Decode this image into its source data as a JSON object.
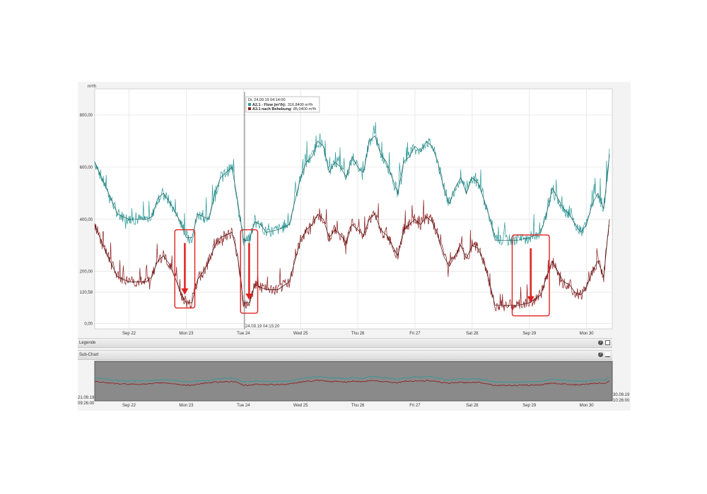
{
  "colors": {
    "flow": "#2a9a98",
    "nach": "#8b1a1a",
    "flow_avg": "#1a5a58",
    "nach_avg": "#3a0a0a",
    "highlight": "#e02020",
    "grid": "#dddddd"
  },
  "legend_bar": {
    "title": "Legende"
  },
  "subchart_bar": {
    "title": "Sub-Chart"
  },
  "subchart": {
    "start_label": [
      "21.09.19",
      "09:26:00"
    ],
    "end_label": [
      "30.09.19",
      "10:26:00"
    ]
  },
  "tooltip": {
    "header": "Di, 24.09.19 04:14:00",
    "rows": [
      {
        "name": "A2.1 - Flow (m³/h):",
        "value": "316,8400 m³/h"
      },
      {
        "name": "A3.1 nach Behebung:",
        "value": "85,0400 m³/h"
      }
    ],
    "crosshair_label": "24.09.19 04:15:20"
  },
  "chart_data": {
    "type": "line",
    "ylabel": "m³/h",
    "ylim": [
      -20,
      900
    ],
    "yticks": [
      {
        "value": 0,
        "label": "0,00"
      },
      {
        "value": 120.58,
        "label": "120,58"
      },
      {
        "value": 200,
        "label": "200,00"
      },
      {
        "value": 400,
        "label": "400,00"
      },
      {
        "value": 600,
        "label": "600,00"
      },
      {
        "value": 800,
        "label": "800,00"
      }
    ],
    "xlim": [
      0,
      9.05
    ],
    "xticks": [
      {
        "value": 0.6,
        "label": "Sep 22"
      },
      {
        "value": 1.6,
        "label": "Mon 23"
      },
      {
        "value": 2.6,
        "label": "Tue 24"
      },
      {
        "value": 3.6,
        "label": "Wed 25"
      },
      {
        "value": 4.6,
        "label": "Thu 26"
      },
      {
        "value": 5.6,
        "label": "Fri 27"
      },
      {
        "value": 6.6,
        "label": "Sat 28"
      },
      {
        "value": 7.6,
        "label": "Sep 29"
      },
      {
        "value": 8.6,
        "label": "Mon 30"
      }
    ],
    "series": [
      {
        "name": "A2.1 - Flow (m³/h)",
        "x": [
          0,
          0.2,
          0.4,
          0.6,
          0.8,
          0.9,
          1.0,
          1.1,
          1.2,
          1.3,
          1.4,
          1.5,
          1.6,
          1.7,
          1.8,
          1.9,
          2.0,
          2.1,
          2.2,
          2.3,
          2.4,
          2.5,
          2.6,
          2.7,
          2.8,
          2.9,
          3.0,
          3.2,
          3.4,
          3.6,
          3.7,
          3.8,
          3.9,
          4.0,
          4.1,
          4.2,
          4.3,
          4.4,
          4.5,
          4.6,
          4.7,
          4.8,
          4.9,
          5.0,
          5.1,
          5.2,
          5.3,
          5.4,
          5.5,
          5.6,
          5.7,
          5.8,
          5.9,
          6.0,
          6.1,
          6.2,
          6.3,
          6.4,
          6.5,
          6.6,
          6.7,
          6.8,
          6.9,
          7.0,
          7.2,
          7.4,
          7.6,
          7.8,
          7.9,
          8.0,
          8.1,
          8.2,
          8.3,
          8.4,
          8.5,
          8.6,
          8.7,
          8.8,
          8.9,
          9.0
        ],
        "values": [
          620,
          520,
          420,
          400,
          400,
          400,
          410,
          480,
          500,
          470,
          430,
          390,
          330,
          330,
          420,
          410,
          400,
          500,
          560,
          580,
          600,
          470,
          320,
          320,
          390,
          380,
          350,
          360,
          380,
          560,
          620,
          640,
          700,
          680,
          580,
          620,
          600,
          560,
          640,
          600,
          580,
          700,
          720,
          650,
          620,
          560,
          500,
          620,
          640,
          680,
          660,
          700,
          680,
          620,
          520,
          460,
          520,
          560,
          500,
          560,
          540,
          480,
          410,
          320,
          320,
          320,
          330,
          350,
          420,
          520,
          480,
          440,
          420,
          380,
          350,
          380,
          460,
          500,
          440,
          650
        ]
      },
      {
        "name": "A3.1 nach Behebung",
        "x": [
          0,
          0.2,
          0.4,
          0.6,
          0.8,
          0.9,
          1.0,
          1.1,
          1.2,
          1.3,
          1.4,
          1.5,
          1.6,
          1.7,
          1.8,
          1.9,
          2.0,
          2.1,
          2.2,
          2.3,
          2.4,
          2.5,
          2.6,
          2.7,
          2.8,
          2.9,
          3.0,
          3.2,
          3.4,
          3.6,
          3.7,
          3.8,
          3.9,
          4.0,
          4.1,
          4.2,
          4.3,
          4.4,
          4.5,
          4.6,
          4.7,
          4.8,
          4.9,
          5.0,
          5.1,
          5.2,
          5.3,
          5.4,
          5.5,
          5.6,
          5.7,
          5.8,
          5.9,
          6.0,
          6.1,
          6.2,
          6.3,
          6.4,
          6.5,
          6.6,
          6.7,
          6.8,
          6.9,
          7.0,
          7.2,
          7.4,
          7.6,
          7.8,
          7.9,
          8.0,
          8.1,
          8.2,
          8.3,
          8.4,
          8.5,
          8.6,
          8.7,
          8.8,
          8.9,
          9.0
        ],
        "values": [
          380,
          270,
          180,
          160,
          160,
          160,
          180,
          240,
          260,
          230,
          180,
          120,
          80,
          80,
          170,
          200,
          240,
          300,
          330,
          340,
          350,
          260,
          80,
          80,
          150,
          140,
          130,
          130,
          160,
          320,
          360,
          380,
          420,
          400,
          330,
          360,
          340,
          310,
          380,
          360,
          340,
          400,
          420,
          360,
          340,
          300,
          260,
          360,
          380,
          400,
          380,
          410,
          390,
          340,
          260,
          220,
          260,
          300,
          250,
          300,
          290,
          240,
          160,
          70,
          70,
          70,
          80,
          110,
          180,
          240,
          200,
          160,
          150,
          120,
          110,
          140,
          200,
          240,
          180,
          400
        ]
      }
    ],
    "annotations": [
      {
        "type": "box_arrow",
        "x0": 1.4,
        "x1": 1.75,
        "y_from": 320,
        "y_to": 100
      },
      {
        "type": "box_arrow",
        "x0": 2.55,
        "x1": 2.85,
        "y_from": 320,
        "y_to": 80
      },
      {
        "type": "box_arrow",
        "x0": 7.3,
        "x1": 7.95,
        "y_from": 300,
        "y_to": 70
      }
    ]
  }
}
